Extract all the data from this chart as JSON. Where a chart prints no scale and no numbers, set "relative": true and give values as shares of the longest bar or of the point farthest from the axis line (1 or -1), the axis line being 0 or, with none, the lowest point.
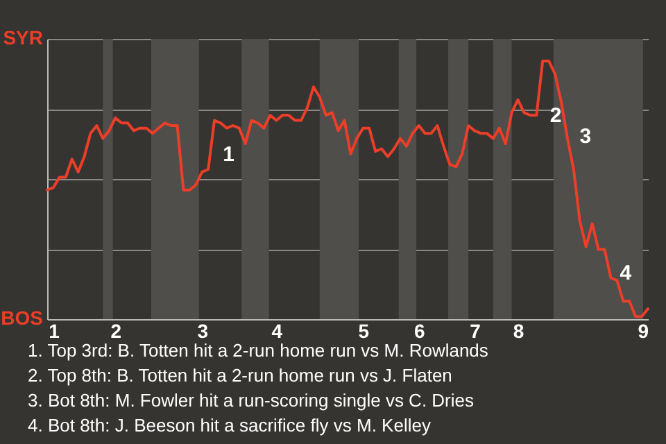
{
  "chart_data": {
    "type": "line",
    "relative": true,
    "categories": [
      null,
      "1",
      null,
      null,
      null,
      null,
      null,
      null,
      null,
      null,
      null,
      "2",
      null,
      null,
      null,
      null,
      null,
      null,
      null,
      null,
      null,
      null,
      null,
      null,
      null,
      "3",
      null,
      null,
      null,
      null,
      null,
      null,
      null,
      null,
      null,
      null,
      null,
      "4",
      null,
      null,
      null,
      null,
      null,
      null,
      null,
      null,
      null,
      null,
      null,
      null,
      null,
      "5",
      null,
      null,
      null,
      null,
      null,
      null,
      null,
      null,
      "6",
      null,
      null,
      null,
      null,
      null,
      null,
      null,
      null,
      "7",
      null,
      null,
      null,
      null,
      null,
      null,
      "8",
      null,
      null,
      null,
      null,
      null,
      null,
      null,
      null,
      null,
      null,
      null,
      null,
      null,
      null,
      null,
      null,
      null,
      null,
      null,
      null,
      "9"
    ],
    "series": [
      {
        "color": "#ec3e28",
        "values": [
          0.5,
          0.51,
          0.55,
          0.55,
          0.62,
          0.57,
          0.63,
          0.72,
          0.75,
          0.7,
          0.73,
          0.78,
          0.76,
          0.76,
          0.73,
          0.74,
          0.74,
          0.72,
          0.74,
          0.76,
          0.75,
          0.75,
          0.5,
          0.5,
          0.52,
          0.57,
          0.58,
          0.77,
          0.76,
          0.74,
          0.75,
          0.74,
          0.68,
          0.77,
          0.76,
          0.74,
          0.79,
          0.77,
          0.79,
          0.79,
          0.77,
          0.77,
          0.82,
          0.9,
          0.86,
          0.79,
          0.8,
          0.73,
          0.77,
          0.64,
          0.7,
          0.74,
          0.74,
          0.65,
          0.66,
          0.63,
          0.66,
          0.7,
          0.67,
          0.72,
          0.75,
          0.72,
          0.72,
          0.75,
          0.67,
          0.6,
          0.59,
          0.64,
          0.75,
          0.73,
          0.72,
          0.72,
          0.7,
          0.74,
          0.68,
          0.8,
          0.85,
          0.8,
          0.79,
          0.79,
          1,
          1,
          0.95,
          0.84,
          0.7,
          0.58,
          0.38,
          0.28,
          0.37,
          0.27,
          0.27,
          0.16,
          0.15,
          0.07,
          0.07,
          0.01,
          0.01,
          0.04
        ]
      }
    ],
    "grid": "y",
    "annotations": [
      "SYR",
      "BOS",
      "1",
      "2",
      "3",
      "4",
      "1. Top 3rd: B. Totten hit a 2-run home run vs M. Rowlands",
      "2. Top 8th: B. Totten hit a 2-run home run vs J. Flaten",
      "3. Bot 8th: M. Fowler hit a run-scoring single vs C. Dries",
      "4. Bot 8th: J. Beeson hit a sacrifice fly vs M. Kelley"
    ]
  }
}
